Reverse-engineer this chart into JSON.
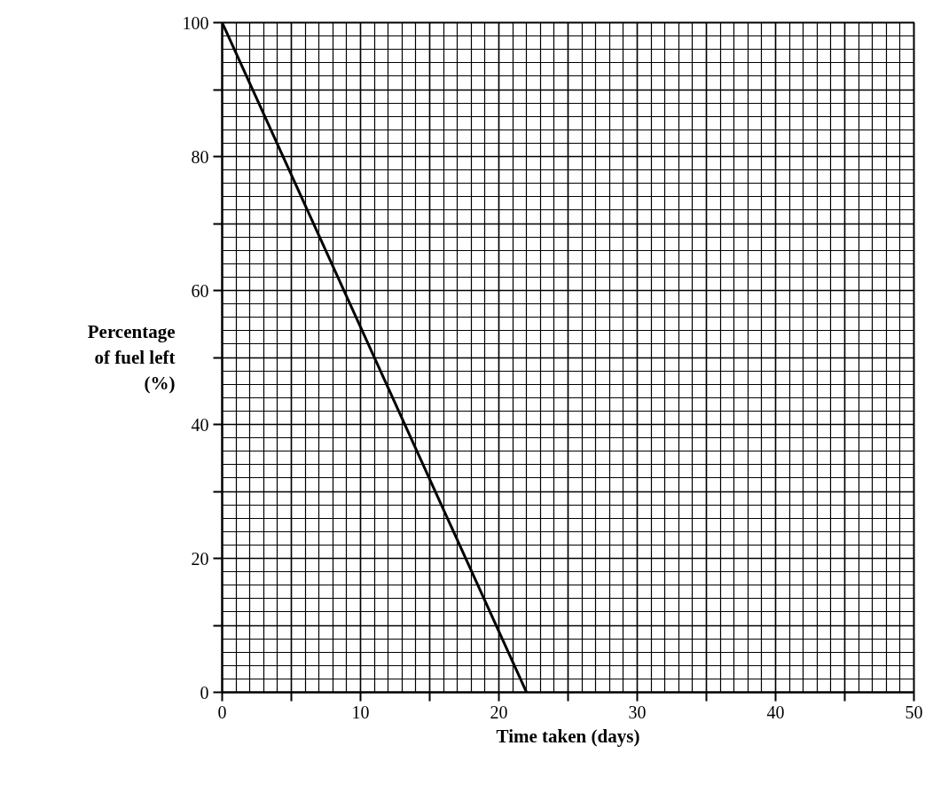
{
  "chart_data": {
    "type": "line",
    "xlabel": "Time taken (days)",
    "ylabel": "Percentage\nof fuel left\n(%)",
    "x": [
      0,
      22
    ],
    "series": [
      {
        "color": "#000000",
        "values": [
          100,
          0
        ]
      }
    ],
    "xlim": [
      0,
      50
    ],
    "ylim": [
      0,
      100
    ],
    "xticks": [
      0,
      {
        "value": 5,
        "label": null
      },
      10,
      {
        "value": 15,
        "label": null
      },
      20,
      {
        "value": 25,
        "label": null
      },
      30,
      {
        "value": 35,
        "label": null
      },
      40,
      {
        "value": 45,
        "label": null
      },
      50
    ],
    "yticks": [
      0,
      {
        "value": 10,
        "label": null
      },
      20,
      {
        "value": 30,
        "label": null
      },
      40,
      {
        "value": 50,
        "label": null
      },
      60,
      {
        "value": 70,
        "label": null
      },
      80,
      {
        "value": 90,
        "label": null
      },
      100
    ],
    "grid": true,
    "marker": "none",
    "line_style": "solid"
  }
}
